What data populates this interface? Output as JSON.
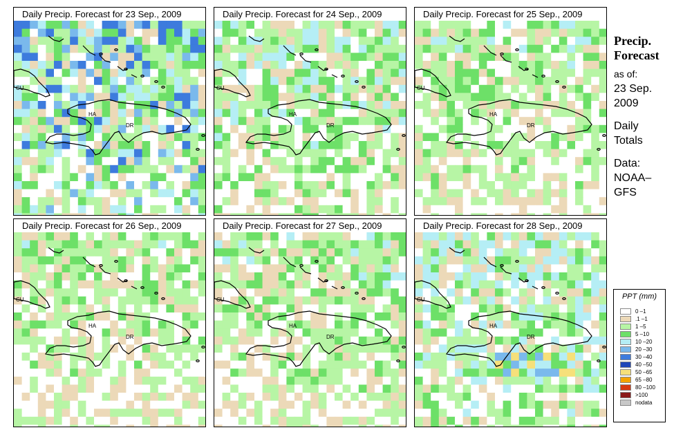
{
  "panels": [
    {
      "title": "Daily Precip. Forecast for  23 Sep., 2009",
      "seed": 23,
      "wet": 1.35,
      "heavy": true,
      "blueBand": false
    },
    {
      "title": "Daily Precip. Forecast for  24 Sep., 2009",
      "seed": 24,
      "wet": 1.0,
      "heavy": false,
      "blueBand": false
    },
    {
      "title": "Daily Precip. Forecast for  25 Sep., 2009",
      "seed": 25,
      "wet": 0.85,
      "heavy": false,
      "blueBand": false
    },
    {
      "title": "Daily Precip. Forecast for  26 Sep., 2009",
      "seed": 26,
      "wet": 0.8,
      "heavy": false,
      "blueBand": false
    },
    {
      "title": "Daily Precip. Forecast for  27 Sep., 2009",
      "seed": 27,
      "wet": 0.85,
      "heavy": false,
      "blueBand": false
    },
    {
      "title": "Daily Precip. Forecast for  28 Sep., 2009",
      "seed": 28,
      "wet": 1.1,
      "heavy": false,
      "blueBand": true
    }
  ],
  "map_labels": [
    "CU",
    "HA",
    "DR"
  ],
  "sidebar": {
    "title_line1": "Precip.",
    "title_line2": "Forecast",
    "asof": "as of:",
    "date_line1": "23 Sep.",
    "date_line2": "2009",
    "totals_line1": "Daily",
    "totals_line2": "Totals",
    "data_line1": "Data:",
    "data_line2": "NOAA–",
    "data_line3": "GFS"
  },
  "legend": {
    "title": "PPT (mm)",
    "items": [
      {
        "label": "0 –1",
        "color": "#ffffff"
      },
      {
        "label": ".1 –1",
        "color": "#ecd9b8"
      },
      {
        "label": "1 –5",
        "color": "#b7f5a5"
      },
      {
        "label": "5 –10",
        "color": "#6de068"
      },
      {
        "label": "10 –20",
        "color": "#b5eef5"
      },
      {
        "label": "20 –30",
        "color": "#7ab9ec"
      },
      {
        "label": "30 –40",
        "color": "#3d7bdd"
      },
      {
        "label": "40 –50",
        "color": "#1f46b8"
      },
      {
        "label": "50 –65",
        "color": "#f6e07a"
      },
      {
        "label": "65 –80",
        "color": "#f4a300"
      },
      {
        "label": "80 –100",
        "color": "#d73a12"
      },
      {
        "label": ">100",
        "color": "#8b1a1a"
      },
      {
        "label": "nodata",
        "color": "#c8c8c8"
      }
    ]
  }
}
